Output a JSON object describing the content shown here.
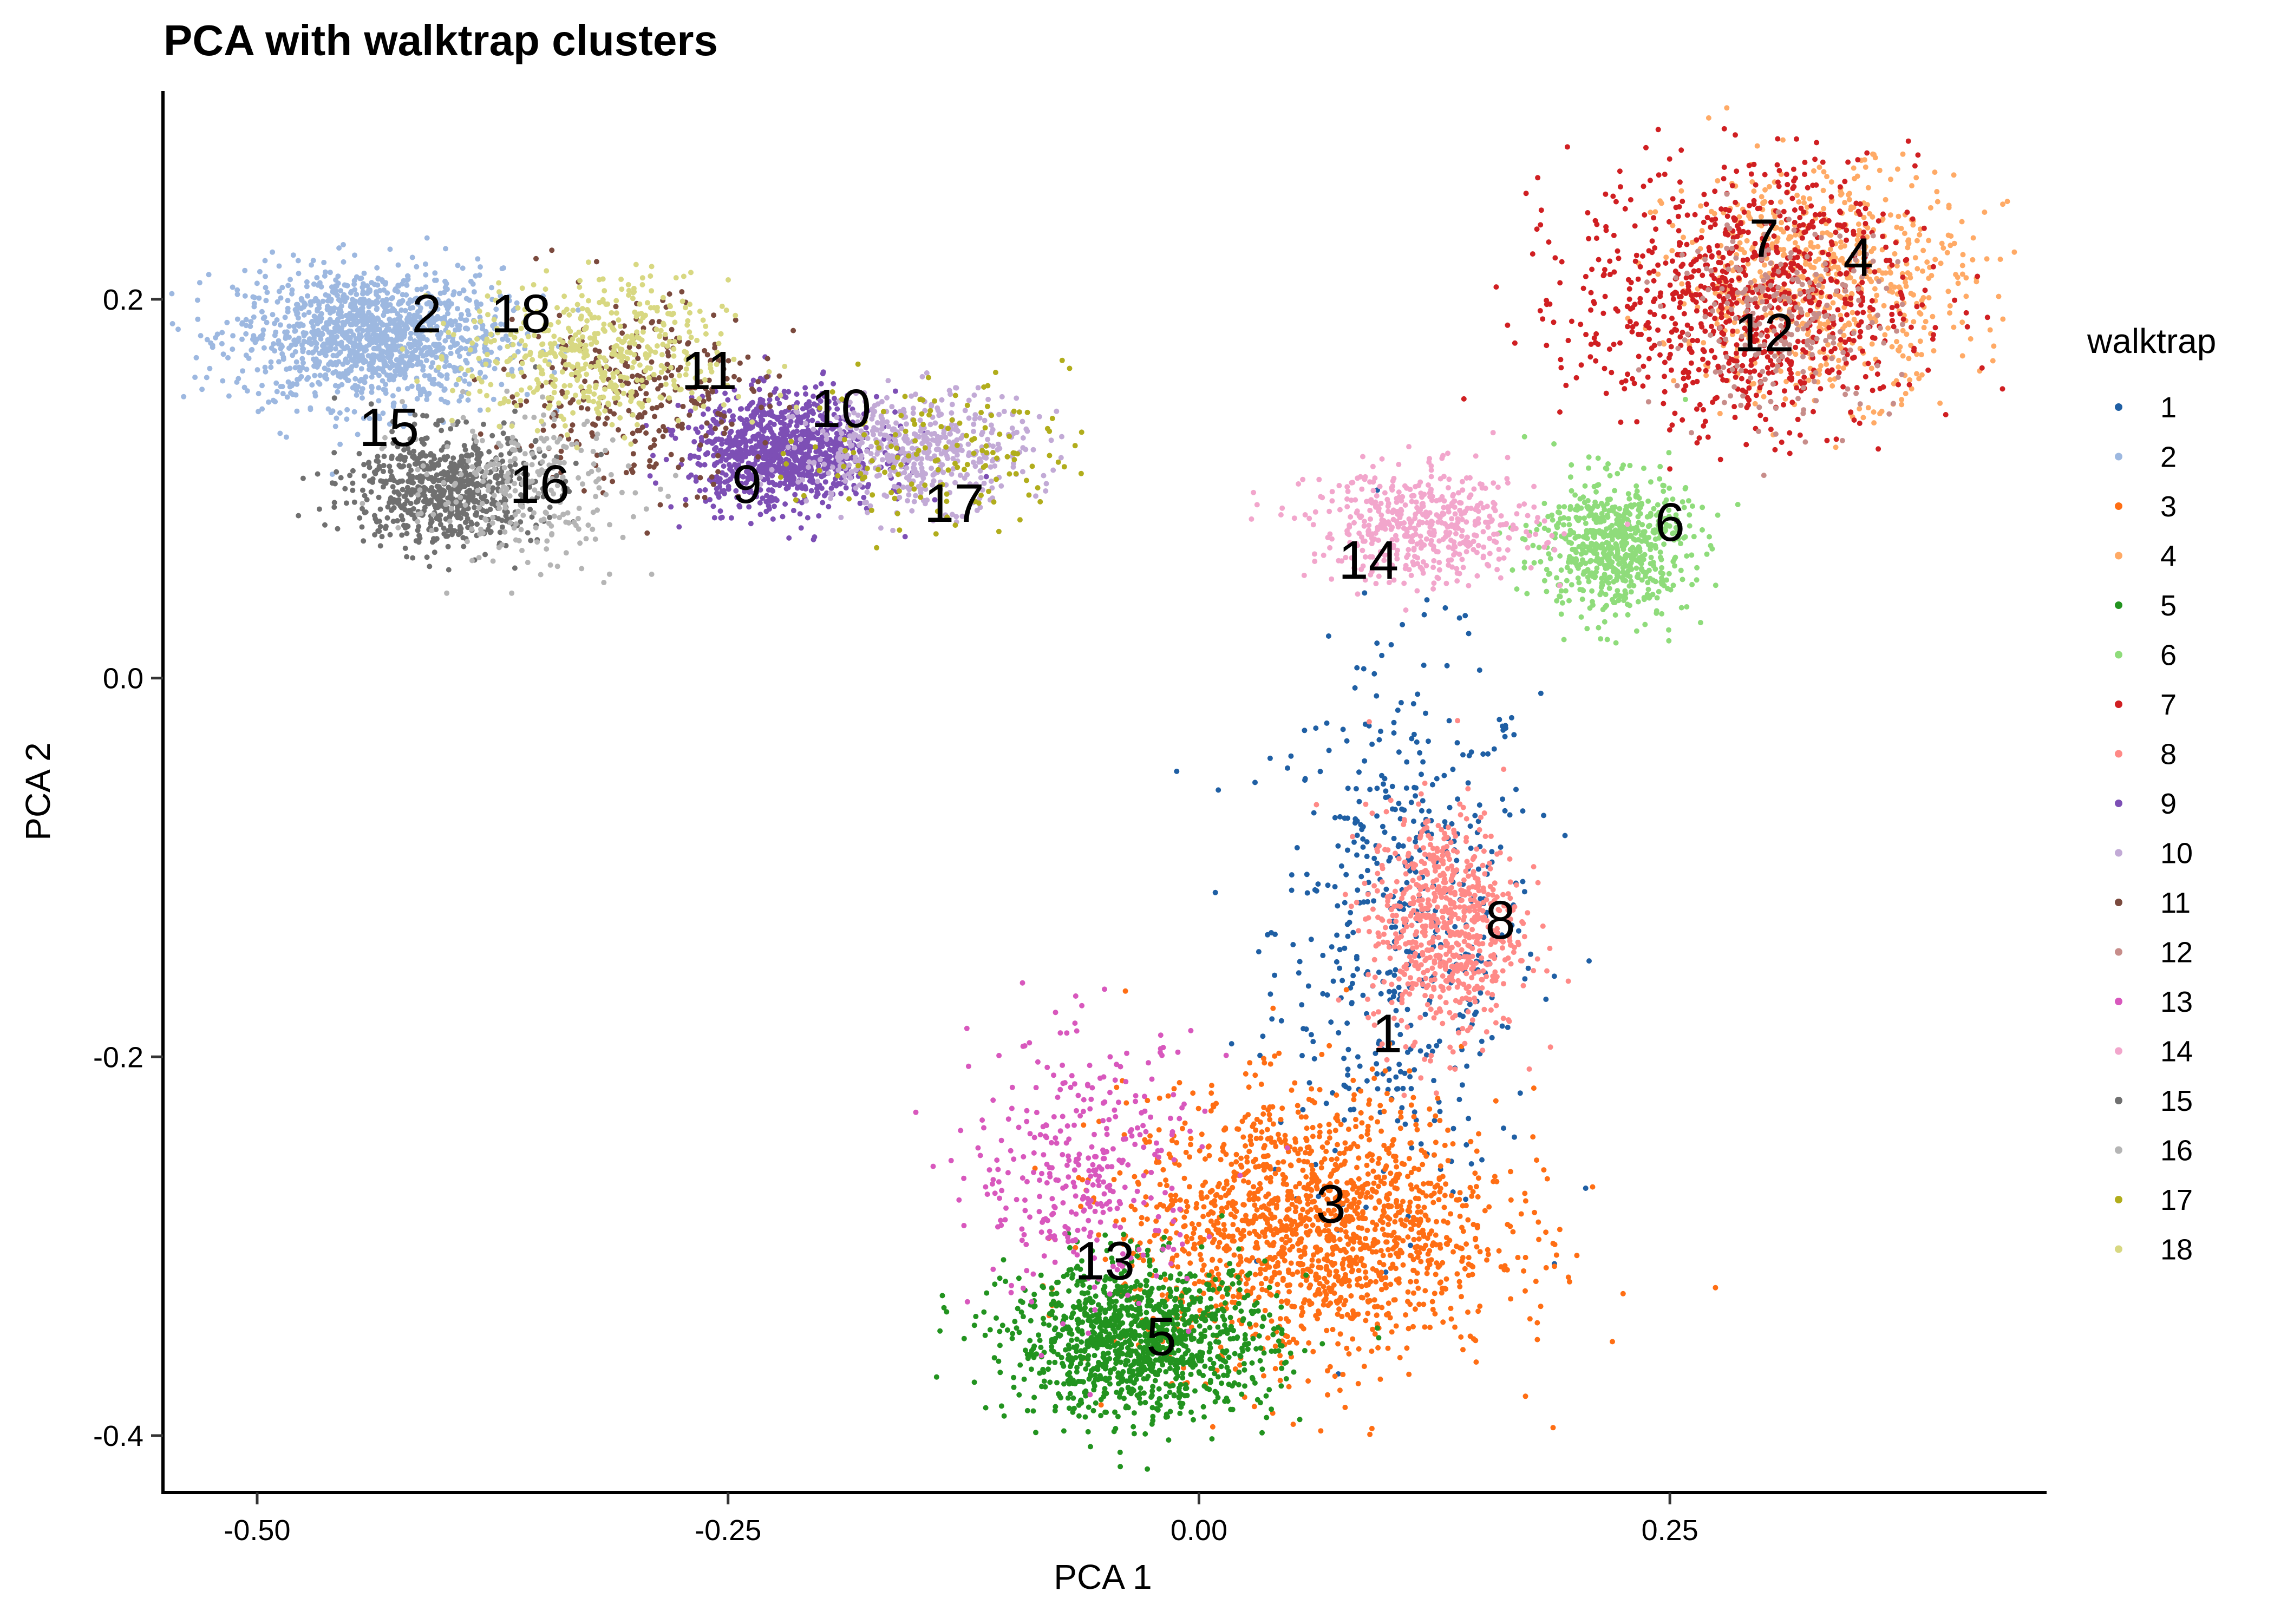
{
  "chart_data": {
    "type": "scatter",
    "title": "PCA with walktrap clusters",
    "xlabel": "PCA 1",
    "ylabel": "PCA 2",
    "xlim": [
      -0.55,
      0.45
    ],
    "ylim": [
      -0.43,
      0.31
    ],
    "x_ticks": [
      -0.5,
      -0.25,
      0.0,
      0.25
    ],
    "x_tick_labels": [
      "-0.50",
      "-0.25",
      "0.00",
      "0.25"
    ],
    "y_ticks": [
      -0.4,
      -0.2,
      0.0,
      0.2
    ],
    "y_tick_labels": [
      "-0.4",
      "-0.2",
      "0.0",
      "0.2"
    ],
    "grid": false,
    "legend": {
      "title": "walktrap",
      "position": "right"
    },
    "series": [
      {
        "name": "1",
        "color": "#1f5fa4",
        "center": [
          0.11,
          -0.13
        ],
        "spread": [
          0.035,
          0.07
        ],
        "count": 520,
        "label_pos": [
          0.1,
          -0.19
        ]
      },
      {
        "name": "2",
        "color": "#9db8e0",
        "center": [
          -0.44,
          0.18
        ],
        "spread": [
          0.035,
          0.018
        ],
        "count": 1300,
        "label_pos": [
          -0.41,
          0.19
        ]
      },
      {
        "name": "3",
        "color": "#ff6e14",
        "center": [
          0.06,
          -0.29
        ],
        "spread": [
          0.05,
          0.035
        ],
        "count": 1600,
        "label_pos": [
          0.07,
          -0.28
        ]
      },
      {
        "name": "4",
        "color": "#ffaa66",
        "center": [
          0.33,
          0.21
        ],
        "spread": [
          0.04,
          0.03
        ],
        "count": 700,
        "label_pos": [
          0.35,
          0.22
        ]
      },
      {
        "name": "5",
        "color": "#22931f",
        "center": [
          -0.03,
          -0.35
        ],
        "spread": [
          0.035,
          0.02
        ],
        "count": 1200,
        "label_pos": [
          -0.02,
          -0.35
        ]
      },
      {
        "name": "6",
        "color": "#8fdc7b",
        "center": [
          0.22,
          0.07
        ],
        "spread": [
          0.02,
          0.018
        ],
        "count": 650,
        "label_pos": [
          0.25,
          0.08
        ]
      },
      {
        "name": "7",
        "color": "#d01f22",
        "center": [
          0.29,
          0.2
        ],
        "spread": [
          0.045,
          0.035
        ],
        "count": 900,
        "label_pos": [
          0.3,
          0.23
        ]
      },
      {
        "name": "8",
        "color": "#ff8a87",
        "center": [
          0.13,
          -0.13
        ],
        "spread": [
          0.02,
          0.03
        ],
        "count": 700,
        "label_pos": [
          0.16,
          -0.13
        ]
      },
      {
        "name": "9",
        "color": "#7d4fb5",
        "center": [
          -0.22,
          0.12
        ],
        "spread": [
          0.025,
          0.015
        ],
        "count": 1000,
        "label_pos": [
          -0.24,
          0.1
        ]
      },
      {
        "name": "10",
        "color": "#c2aad6",
        "center": [
          -0.15,
          0.12
        ],
        "spread": [
          0.03,
          0.015
        ],
        "count": 500,
        "label_pos": [
          -0.19,
          0.14
        ]
      },
      {
        "name": "11",
        "color": "#7b4a3e",
        "center": [
          -0.3,
          0.15
        ],
        "spread": [
          0.035,
          0.025
        ],
        "count": 300,
        "label_pos": [
          -0.26,
          0.16
        ]
      },
      {
        "name": "12",
        "color": "#c78d8a",
        "center": [
          0.31,
          0.19
        ],
        "spread": [
          0.03,
          0.025
        ],
        "count": 250,
        "label_pos": [
          0.3,
          0.18
        ]
      },
      {
        "name": "13",
        "color": "#d858bd",
        "center": [
          -0.06,
          -0.26
        ],
        "spread": [
          0.03,
          0.035
        ],
        "count": 350,
        "label_pos": [
          -0.05,
          -0.31
        ]
      },
      {
        "name": "14",
        "color": "#f2a6cc",
        "center": [
          0.12,
          0.08
        ],
        "spread": [
          0.03,
          0.015
        ],
        "count": 500,
        "label_pos": [
          0.09,
          0.06
        ]
      },
      {
        "name": "15",
        "color": "#707070",
        "center": [
          -0.4,
          0.1
        ],
        "spread": [
          0.025,
          0.015
        ],
        "count": 700,
        "label_pos": [
          -0.43,
          0.13
        ]
      },
      {
        "name": "16",
        "color": "#b5b5b5",
        "center": [
          -0.36,
          0.1
        ],
        "spread": [
          0.03,
          0.02
        ],
        "count": 250,
        "label_pos": [
          -0.35,
          0.1
        ]
      },
      {
        "name": "17",
        "color": "#b1ad1c",
        "center": [
          -0.14,
          0.12
        ],
        "spread": [
          0.035,
          0.02
        ],
        "count": 150,
        "label_pos": [
          -0.13,
          0.09
        ]
      },
      {
        "name": "18",
        "color": "#d8d882",
        "center": [
          -0.32,
          0.17
        ],
        "spread": [
          0.035,
          0.02
        ],
        "count": 500,
        "label_pos": [
          -0.36,
          0.19
        ]
      }
    ]
  }
}
